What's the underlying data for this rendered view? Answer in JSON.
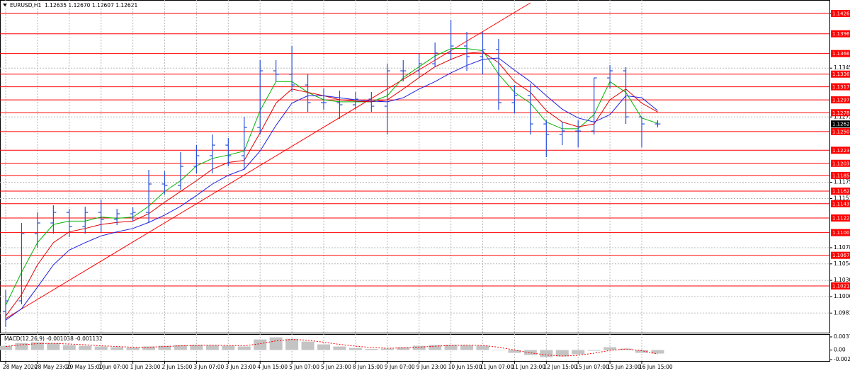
{
  "chart_data": [
    {
      "type": "ohlc",
      "title": "EURUSD,H1  1.12635 1.12670 1.12607 1.12621",
      "categories": [
        "28 May 2020",
        null,
        "28 May 23:00",
        null,
        "29 May 15:00",
        null,
        "1 Jun 07:00",
        null,
        "1 Jun 23:00",
        null,
        "2 Jun 15:00",
        null,
        "3 Jun 07:00",
        null,
        "3 Jun 23:00",
        null,
        "4 Jun 15:00",
        null,
        "5 Jun 07:00",
        null,
        "5 Jun 23:00",
        null,
        "8 Jun 15:00",
        null,
        "9 Jun 07:00",
        null,
        "9 Jun 23:00",
        null,
        "10 Jun 15:00",
        null,
        "11 Jun 07:00",
        null,
        "11 Jun 23:00",
        null,
        "12 Jun 15:00",
        null,
        "15 Jun 07:00",
        null,
        "15 Jun 23:00",
        null,
        "16 Jun 15:00",
        null
      ],
      "open": [
        1.09839,
        1.09996,
        1.10994,
        1.11152,
        1.11309,
        1.11099,
        1.11309,
        1.11204,
        1.11288,
        1.11309,
        1.1173,
        1.11709,
        1.11992,
        1.1215,
        1.12307,
        1.1215,
        1.1257,
        1.1341,
        1.13358,
        1.132,
        1.12938,
        1.12938,
        1.12906,
        1.1299,
        1.12885,
        1.1341,
        1.1341,
        1.13515,
        1.13673,
        1.13778,
        1.1362,
        1.13725,
        1.12938,
        1.13043,
        1.12622,
        1.12465,
        1.12517,
        1.12517,
        1.13305,
        1.1341,
        1.12727,
        1.12622
      ],
      "high": [
        1.10154,
        1.11152,
        1.11309,
        1.11414,
        1.11362,
        1.11393,
        1.11498,
        1.11362,
        1.11383,
        1.1194,
        1.11919,
        1.12202,
        1.12307,
        1.12465,
        1.12412,
        1.12727,
        1.13568,
        1.13568,
        1.13778,
        1.13358,
        1.13148,
        1.13116,
        1.13095,
        1.13095,
        1.13515,
        1.13568,
        1.13673,
        1.1383,
        1.14166,
        1.13988,
        1.13988,
        1.13883,
        1.132,
        1.13221,
        1.12675,
        1.12654,
        1.12675,
        1.13305,
        1.13494,
        1.13463,
        1.12727,
        1.12675
      ],
      "low": [
        1.09608,
        1.09944,
        1.10784,
        1.10994,
        1.10942,
        1.10994,
        1.11015,
        1.1112,
        1.11183,
        1.11152,
        1.11572,
        1.11646,
        1.11887,
        1.11887,
        1.11992,
        1.1194,
        1.12465,
        1.13253,
        1.13095,
        1.12801,
        1.12833,
        1.12696,
        1.12833,
        1.12801,
        1.12465,
        1.13253,
        1.13305,
        1.13463,
        1.13568,
        1.1341,
        1.13358,
        1.12833,
        1.1278,
        1.12465,
        1.12129,
        1.12307,
        1.12276,
        1.12465,
        1.13148,
        1.12622,
        1.12276,
        1.1257
      ],
      "close": [
        1.09996,
        1.10994,
        1.11152,
        1.11309,
        1.11099,
        1.11309,
        1.11204,
        1.11288,
        1.11309,
        1.1173,
        1.11709,
        1.11992,
        1.1215,
        1.12307,
        1.1215,
        1.1257,
        1.1341,
        1.13358,
        1.132,
        1.12938,
        1.12938,
        1.12906,
        1.1299,
        1.12885,
        1.1341,
        1.1341,
        1.13515,
        1.13673,
        1.13778,
        1.1362,
        1.13725,
        1.12938,
        1.13043,
        1.12622,
        1.12465,
        1.12517,
        1.12517,
        1.13305,
        1.1341,
        1.12727,
        1.12622,
        1.12621
      ],
      "color": "#2a4fd8",
      "lines": [
        {
          "color": "#00b400",
          "values": [
            1.0993,
            1.1042,
            1.1086,
            1.1113,
            1.1118,
            1.1118,
            1.1124,
            1.1122,
            1.1124,
            1.114,
            1.1162,
            1.1178,
            1.12,
            1.1211,
            1.1216,
            1.1222,
            1.1282,
            1.1325,
            1.1325,
            1.1309,
            1.1298,
            1.1295,
            1.1295,
            1.1295,
            1.1304,
            1.1331,
            1.1347,
            1.1363,
            1.1374,
            1.1374,
            1.1371,
            1.1336,
            1.1309,
            1.1293,
            1.1265,
            1.1255,
            1.1255,
            1.1276,
            1.1325,
            1.1309,
            1.1271,
            1.1263
          ]
        },
        {
          "color": "#e00000",
          "values": [
            1.0977,
            1.1009,
            1.1053,
            1.1086,
            1.1102,
            1.1107,
            1.1113,
            1.1116,
            1.1118,
            1.1129,
            1.1146,
            1.1162,
            1.1178,
            1.1195,
            1.1205,
            1.1208,
            1.1249,
            1.1293,
            1.1314,
            1.1309,
            1.1304,
            1.1298,
            1.1296,
            1.1295,
            1.1298,
            1.1314,
            1.1331,
            1.1347,
            1.1358,
            1.1367,
            1.1369,
            1.1353,
            1.1325,
            1.1309,
            1.1282,
            1.1265,
            1.1258,
            1.1262,
            1.1298,
            1.1314,
            1.1293,
            1.128
          ]
        },
        {
          "color": "#2020e0",
          "values": [
            1.0971,
            1.0988,
            1.102,
            1.1053,
            1.1075,
            1.1086,
            1.1096,
            1.1102,
            1.1107,
            1.1116,
            1.1127,
            1.114,
            1.1156,
            1.1173,
            1.1186,
            1.1195,
            1.1222,
            1.126,
            1.1293,
            1.1304,
            1.1304,
            1.1301,
            1.1298,
            1.1296,
            1.1295,
            1.1301,
            1.1314,
            1.1325,
            1.1338,
            1.1349,
            1.1358,
            1.136,
            1.1342,
            1.1325,
            1.1304,
            1.1284,
            1.1271,
            1.1265,
            1.1276,
            1.1304,
            1.1301,
            1.1282
          ]
        }
      ],
      "trendline": {
        "color": "#ff0000",
        "x": [
          0,
          33
        ],
        "values": [
          1.09734,
          1.14419
        ]
      },
      "levels": {
        "color": "#ff0000",
        "values": [
          1.14261,
          {
            "value": 1.1396,
            "label": "1.13960"
          },
          1.13666,
          1.13361,
          1.13173,
          1.12979,
          1.12788,
          1.12508,
          1.12231,
          1.12037,
          1.11857,
          1.11625,
          1.11438,
          1.11226,
          1.11009,
          1.10672,
          1.10217
        ]
      },
      "ylim": [
        1.09524,
        1.14461
      ],
      "yticks": [
        {
          "value": 1.1426,
          "label": "1.14260"
        },
        {
          "value": 1.1345,
          "label": "1.13450"
        },
        1.12725,
        1.11755,
        1.11515,
        1.10785,
        1.10545,
        {
          "value": 1.103,
          "label": "1.10300"
        },
        {
          "value": 1.1006,
          "label": "1.10060"
        },
        1.09815
      ],
      "grid": true
    },
    {
      "type": "macd",
      "title": "MACD(12,26,9) -0.001038 -0.001132",
      "values": [
        0.0012,
        0.002,
        0.0022,
        0.002,
        0.0014,
        0.0012,
        0.001,
        0.0008,
        0.0007,
        0.001,
        0.0012,
        0.0014,
        0.0015,
        0.0014,
        0.0012,
        0.001,
        0.003,
        0.0036,
        0.0032,
        0.0024,
        0.0016,
        0.001,
        0.0006,
        0.0003,
        0.0004,
        0.0008,
        0.0012,
        0.0014,
        0.0015,
        0.0014,
        0.0012,
        0,
        -0.0008,
        -0.0014,
        -0.002,
        -0.0018,
        -0.0012,
        -0.0002,
        0.0008,
        0.0004,
        -0.0008,
        -0.001
      ],
      "color": "#c4c4c4",
      "signal": {
        "color": "#ff0000",
        "values": [
          0.001,
          0.0015,
          0.0018,
          0.0019,
          0.0017,
          0.0015,
          0.0012,
          0.001,
          0.0008,
          0.0008,
          0.001,
          0.0012,
          0.0013,
          0.0014,
          0.0013,
          0.0012,
          0.0018,
          0.0026,
          0.003,
          0.0028,
          0.0022,
          0.0016,
          0.0011,
          0.0007,
          0.0005,
          0.0006,
          0.0008,
          0.0011,
          0.0013,
          0.0014,
          0.0013,
          0.0008,
          0,
          -0.0008,
          -0.0014,
          -0.0017,
          -0.0015,
          -0.0009,
          -0.0001,
          0.0003,
          -0.0002,
          -0.0011
        ]
      },
      "ylim": [
        -0.0027,
        0.003723
      ],
      "yticks": [
        0.003723,
        {
          "value": 0,
          "label": "0.00"
        },
        -0.0027
      ]
    }
  ]
}
